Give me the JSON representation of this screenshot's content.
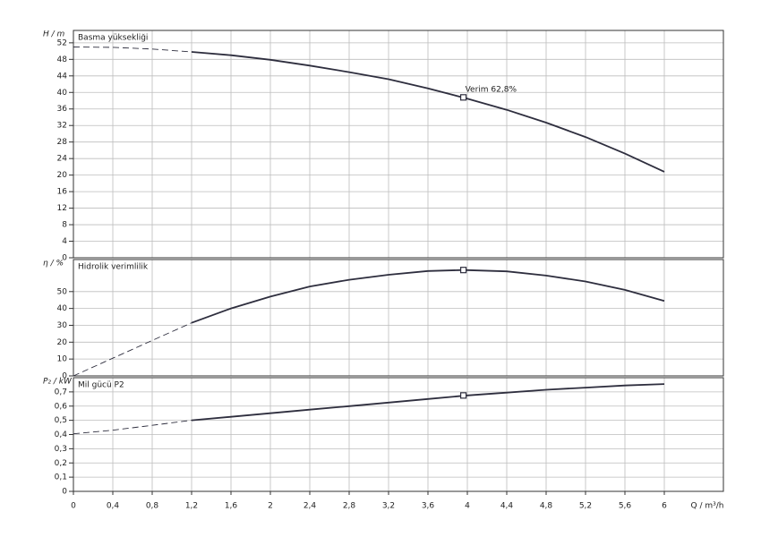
{
  "chart_data": {
    "type": "line",
    "x_label": "Q / m³/h",
    "xlim": [
      0,
      6.6
    ],
    "xticks": [
      0,
      {
        "value": 0.4,
        "label": "0,4"
      },
      {
        "value": 0.8,
        "label": "0,8"
      },
      {
        "value": 1.2,
        "label": "1,2"
      },
      {
        "value": 1.6,
        "label": "1,6"
      },
      2,
      {
        "value": 2.4,
        "label": "2,4"
      },
      {
        "value": 2.8,
        "label": "2,8"
      },
      {
        "value": 3.2,
        "label": "3,2"
      },
      {
        "value": 3.6,
        "label": "3,6"
      },
      4,
      {
        "value": 4.4,
        "label": "4,4"
      },
      {
        "value": 4.8,
        "label": "4,8"
      },
      {
        "value": 5.2,
        "label": "5,2"
      },
      {
        "value": 5.6,
        "label": "5,6"
      },
      6
    ],
    "grid": true,
    "panels": [
      {
        "title": "Basma yüksekliği",
        "y_label": "H / m",
        "ylim": [
          0,
          55
        ],
        "yticks": [
          0,
          4,
          8,
          12,
          16,
          20,
          24,
          28,
          32,
          36,
          40,
          44,
          48,
          52
        ],
        "series": [
          {
            "style": "dashed",
            "color": "#2e2e3e",
            "x": [
              0,
              0.4,
              0.8,
              1.2
            ],
            "values": [
              51,
              50.9,
              50.5,
              49.8
            ]
          },
          {
            "style": "solid",
            "color": "#2e2e3e",
            "x": [
              1.2,
              1.6,
              2,
              2.4,
              2.8,
              3.2,
              3.6,
              4,
              4.4,
              4.8,
              5.2,
              5.6,
              6
            ],
            "values": [
              49.8,
              49,
              47.9,
              46.5,
              44.9,
              43.2,
              41,
              38.5,
              35.8,
              32.7,
              29.2,
              25.2,
              20.8
            ]
          }
        ],
        "marker": {
          "x": 3.96,
          "y": 38.8
        },
        "annotation": "Verim  62,8%"
      },
      {
        "title": "Hidrolik verimlilik",
        "y_label": "η / %",
        "ylim": [
          0,
          69
        ],
        "yticks": [
          0,
          10,
          20,
          30,
          40,
          50
        ],
        "series": [
          {
            "style": "dashed",
            "color": "#2e2e3e",
            "x": [
              0,
              0.4,
              0.8,
              1.2
            ],
            "values": [
              0,
              10.5,
              21,
              31.5
            ]
          },
          {
            "style": "solid",
            "color": "#2e2e3e",
            "x": [
              1.2,
              1.6,
              2,
              2.4,
              2.8,
              3.2,
              3.6,
              3.96,
              4.4,
              4.8,
              5.2,
              5.6,
              6
            ],
            "values": [
              31.5,
              40,
              47,
              53,
              57,
              60,
              62.2,
              62.8,
              62,
              59.5,
              56,
              51,
              44.5
            ]
          }
        ],
        "marker": {
          "x": 3.96,
          "y": 62.8
        }
      },
      {
        "title": "Mil gücü P2",
        "y_label": "P₂ / kW",
        "ylim": [
          0,
          0.8
        ],
        "yticks": [
          0,
          {
            "value": 0.1,
            "label": "0,1"
          },
          {
            "value": 0.2,
            "label": "0,2"
          },
          {
            "value": 0.3,
            "label": "0,3"
          },
          {
            "value": 0.4,
            "label": "0,4"
          },
          {
            "value": 0.5,
            "label": "0,5"
          },
          {
            "value": 0.6,
            "label": "0,6"
          },
          {
            "value": 0.7,
            "label": "0,7"
          }
        ],
        "series": [
          {
            "style": "dashed",
            "color": "#2e2e3e",
            "x": [
              0,
              0.4,
              0.8,
              1.2
            ],
            "values": [
              0.405,
              0.43,
              0.465,
              0.5
            ]
          },
          {
            "style": "solid",
            "color": "#2e2e3e",
            "x": [
              1.2,
              1.6,
              2,
              2.4,
              2.8,
              3.2,
              3.6,
              4,
              4.4,
              4.8,
              5.2,
              5.6,
              6
            ],
            "values": [
              0.5,
              0.525,
              0.55,
              0.575,
              0.6,
              0.625,
              0.65,
              0.675,
              0.695,
              0.715,
              0.73,
              0.745,
              0.755
            ]
          }
        ],
        "marker": {
          "x": 3.96,
          "y": 0.675
        }
      }
    ]
  }
}
